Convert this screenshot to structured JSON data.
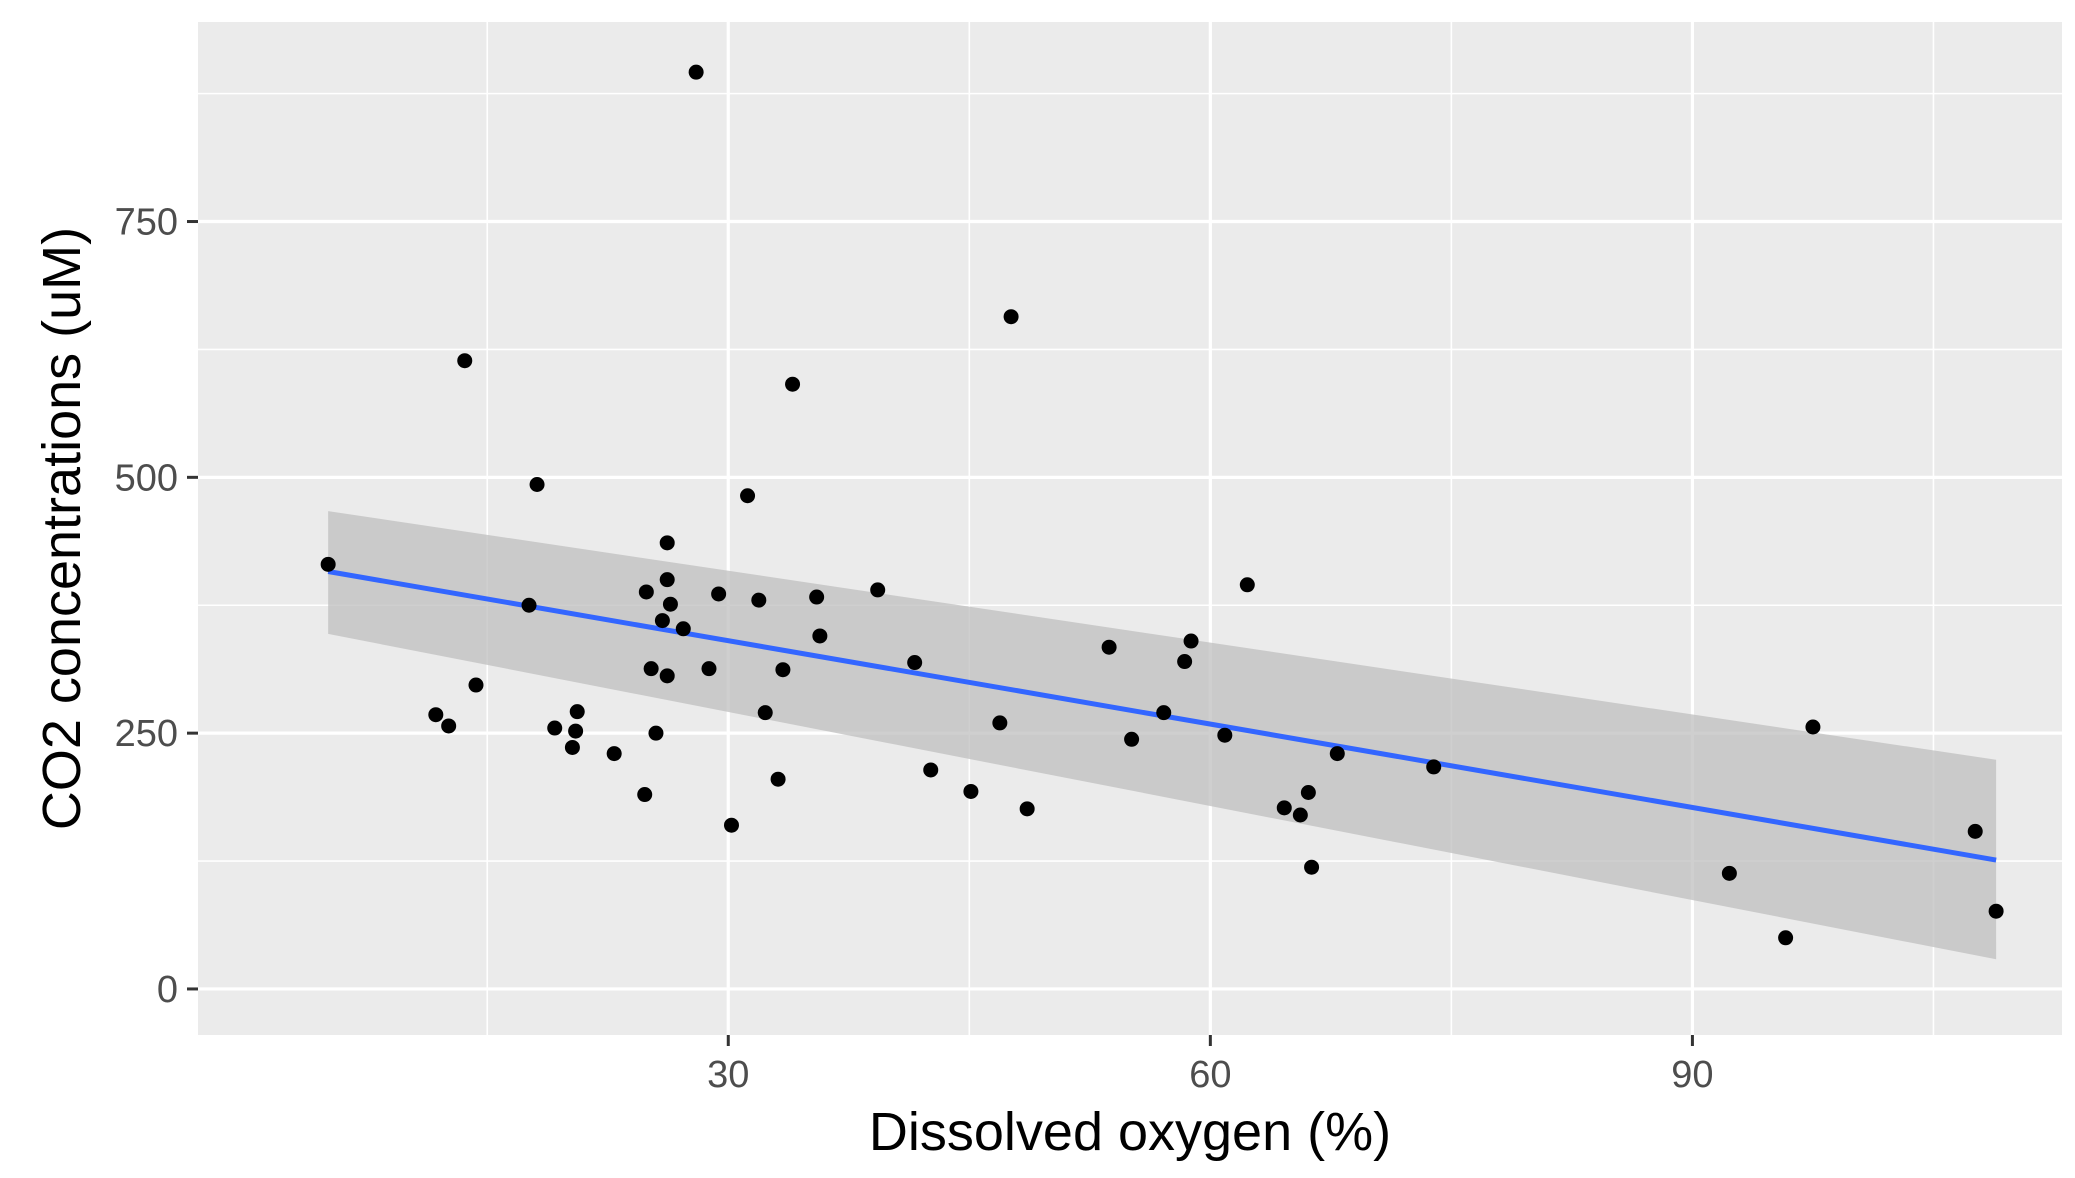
{
  "chart_data": {
    "type": "scatter",
    "title": "",
    "xlabel": "Dissolved oxygen (%)",
    "ylabel": "CO2 concentrations (uM)",
    "xlim": [
      -3,
      113
    ],
    "ylim": [
      -45,
      945
    ],
    "x_ticks": [
      30,
      60,
      90
    ],
    "y_ticks": [
      0,
      250,
      500,
      750
    ],
    "grid": true,
    "legend": "none",
    "colors": {
      "panel": "#ebebeb",
      "grid": "#ffffff",
      "point": "#000000",
      "trend_line": "#3366ff",
      "ribbon": "#bfbfbf"
    },
    "points": [
      {
        "x": 5.1,
        "y": 415
      },
      {
        "x": 11.8,
        "y": 268
      },
      {
        "x": 12.6,
        "y": 257
      },
      {
        "x": 13.6,
        "y": 614
      },
      {
        "x": 14.3,
        "y": 297
      },
      {
        "x": 17.6,
        "y": 375
      },
      {
        "x": 18.1,
        "y": 493
      },
      {
        "x": 19.2,
        "y": 255
      },
      {
        "x": 20.3,
        "y": 236
      },
      {
        "x": 20.5,
        "y": 252
      },
      {
        "x": 20.6,
        "y": 271
      },
      {
        "x": 22.9,
        "y": 230
      },
      {
        "x": 24.8,
        "y": 190
      },
      {
        "x": 24.9,
        "y": 388
      },
      {
        "x": 25.2,
        "y": 313
      },
      {
        "x": 25.5,
        "y": 250
      },
      {
        "x": 25.9,
        "y": 360
      },
      {
        "x": 26.2,
        "y": 436
      },
      {
        "x": 26.2,
        "y": 306
      },
      {
        "x": 26.2,
        "y": 400
      },
      {
        "x": 26.4,
        "y": 376
      },
      {
        "x": 27.2,
        "y": 352
      },
      {
        "x": 28.0,
        "y": 896
      },
      {
        "x": 28.8,
        "y": 313
      },
      {
        "x": 29.4,
        "y": 386
      },
      {
        "x": 30.2,
        "y": 160
      },
      {
        "x": 31.2,
        "y": 482
      },
      {
        "x": 31.9,
        "y": 380
      },
      {
        "x": 32.3,
        "y": 270
      },
      {
        "x": 33.1,
        "y": 205
      },
      {
        "x": 33.4,
        "y": 312
      },
      {
        "x": 34.0,
        "y": 591
      },
      {
        "x": 35.5,
        "y": 383
      },
      {
        "x": 35.7,
        "y": 345
      },
      {
        "x": 39.3,
        "y": 390
      },
      {
        "x": 41.6,
        "y": 319
      },
      {
        "x": 42.6,
        "y": 214
      },
      {
        "x": 45.1,
        "y": 193
      },
      {
        "x": 46.9,
        "y": 260
      },
      {
        "x": 47.6,
        "y": 657
      },
      {
        "x": 48.6,
        "y": 176
      },
      {
        "x": 53.7,
        "y": 334
      },
      {
        "x": 55.1,
        "y": 244
      },
      {
        "x": 57.1,
        "y": 270
      },
      {
        "x": 58.4,
        "y": 320
      },
      {
        "x": 58.8,
        "y": 340
      },
      {
        "x": 60.9,
        "y": 248
      },
      {
        "x": 62.3,
        "y": 395
      },
      {
        "x": 64.6,
        "y": 177
      },
      {
        "x": 65.6,
        "y": 170
      },
      {
        "x": 66.1,
        "y": 192
      },
      {
        "x": 66.3,
        "y": 119
      },
      {
        "x": 67.9,
        "y": 230
      },
      {
        "x": 73.9,
        "y": 217
      },
      {
        "x": 92.3,
        "y": 113
      },
      {
        "x": 95.8,
        "y": 50
      },
      {
        "x": 97.5,
        "y": 256
      },
      {
        "x": 107.6,
        "y": 154
      },
      {
        "x": 108.9,
        "y": 76
      }
    ],
    "trend": {
      "method": "linear",
      "x": [
        5.1,
        108.9
      ],
      "y": [
        408,
        126
      ],
      "ci_lower": [
        347,
        29
      ],
      "ci_upper": [
        467,
        224
      ]
    }
  }
}
